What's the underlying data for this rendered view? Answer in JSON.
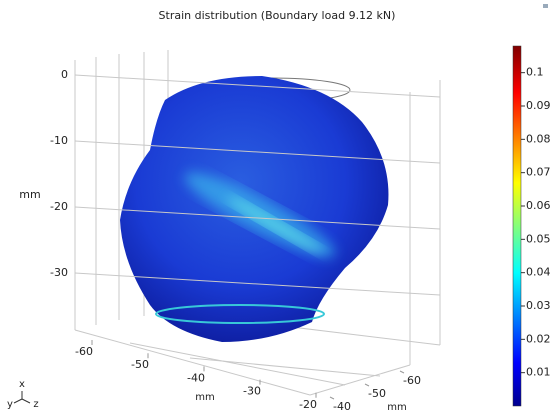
{
  "chart_data": {
    "type": "surface3d",
    "title": "Strain distribution (Boundary load 9.12 kN)",
    "vertical_axis": {
      "label": "mm",
      "ticks": [
        0,
        -10,
        -20,
        -30
      ]
    },
    "front_axis": {
      "label": "mm",
      "ticks": [
        -60,
        -50,
        -40,
        -30,
        -20
      ]
    },
    "side_axis": {
      "label": "mm",
      "ticks": [
        -40,
        -50,
        -60
      ]
    },
    "triad": [
      "x",
      "y",
      "z"
    ],
    "colorbar": {
      "lim": [
        0,
        0.108
      ],
      "ticks": [
        0.01,
        0.02,
        0.03,
        0.04,
        0.05,
        0.06,
        0.07,
        0.08,
        0.09,
        0.1
      ]
    }
  }
}
